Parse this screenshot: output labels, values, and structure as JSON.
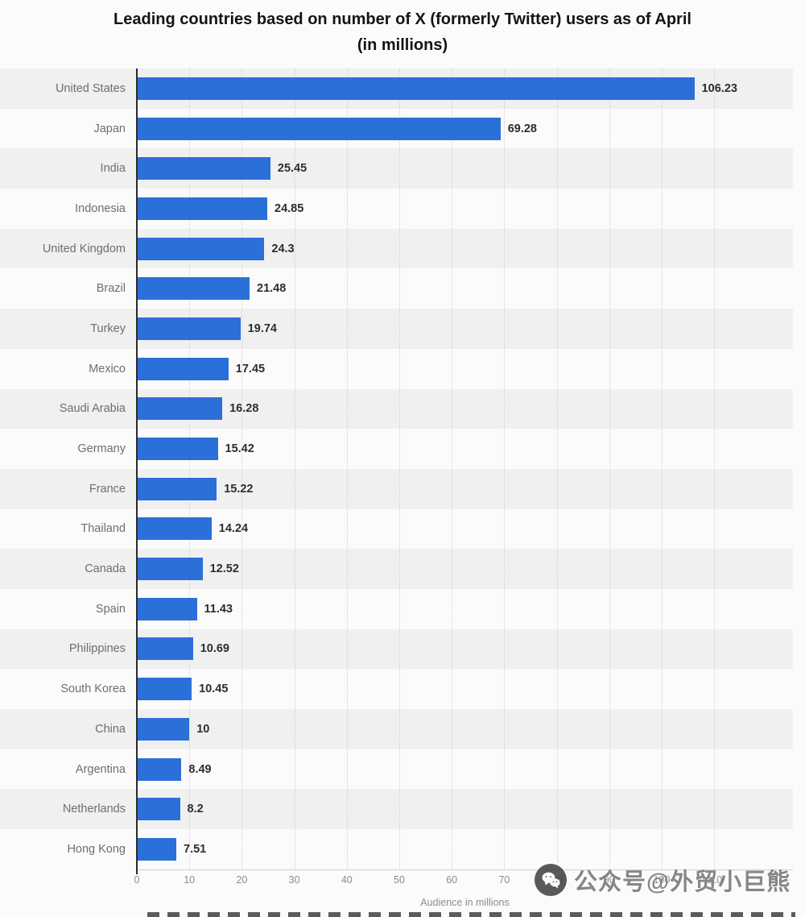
{
  "title": {
    "line1": "Leading countries based on number of X (formerly Twitter) users as of April",
    "line2": "(in millions)"
  },
  "chart_data": {
    "type": "bar",
    "orientation": "horizontal",
    "title": "Leading countries based on number of X (formerly Twitter) users as of April (in millions)",
    "categories": [
      "United States",
      "Japan",
      "India",
      "Indonesia",
      "United Kingdom",
      "Brazil",
      "Turkey",
      "Mexico",
      "Saudi Arabia",
      "Germany",
      "France",
      "Thailand",
      "Canada",
      "Spain",
      "Philippines",
      "South Korea",
      "China",
      "Argentina",
      "Netherlands",
      "Hong Kong"
    ],
    "values": [
      106.23,
      69.28,
      25.45,
      24.85,
      24.3,
      21.48,
      19.74,
      17.45,
      16.28,
      15.42,
      15.22,
      14.24,
      12.52,
      11.43,
      10.69,
      10.45,
      10,
      8.49,
      8.2,
      7.51
    ],
    "value_labels": [
      "106.23",
      "69.28",
      "25.45",
      "24.85",
      "24.3",
      "21.48",
      "19.74",
      "17.45",
      "16.28",
      "15.42",
      "15.22",
      "14.24",
      "12.52",
      "11.43",
      "10.69",
      "10.45",
      "10",
      "8.49",
      "8.2",
      "7.51"
    ],
    "xlabel": "Audience in millions",
    "ylabel": "",
    "x_ticks": [
      0,
      10,
      20,
      30,
      40,
      50,
      60,
      70,
      80,
      90,
      100,
      110
    ],
    "xlim": [
      0,
      125
    ],
    "grid": "vertical-dotted",
    "legend": "none",
    "zebra_banding": true
  },
  "colors": {
    "bar": "#2b6fd9",
    "band": "#f0f0f0",
    "axis_line": "#2b2b2b",
    "value_label": "#2d2d2d",
    "category_label": "#6e6e6e",
    "tick_label": "#8d8d8d"
  },
  "watermark": {
    "icon": "wechat-icon",
    "text": "公众号@外贸小巨熊"
  }
}
